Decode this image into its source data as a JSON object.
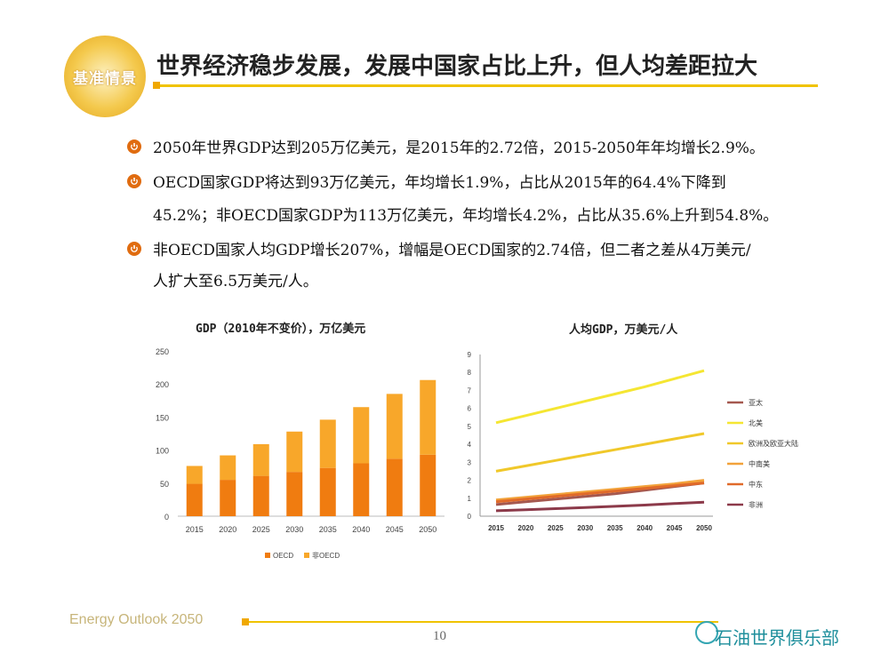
{
  "header": {
    "logo_text": "基准情景",
    "title": "世界经济稳步发展，发展中国家占比上升，但人均差距拉大"
  },
  "bullets": [
    {
      "lines": [
        "2050年世界GDP达到205万亿美元，是2015年的2.72倍，2015-2050年年均增长2.9%。"
      ]
    },
    {
      "lines": [
        "OECD国家GDP将达到93万亿美元，年均增长1.9%，占比从2015年的64.4%下降到",
        "45.2%；非OECD国家GDP为113万亿美元，年均增长4.2%，占比从35.6%上升到54.8%。"
      ]
    },
    {
      "lines": [
        "非OECD国家人均GDP增长207%，增幅是OECD国家的2.74倍，但二者之差从4万美元/",
        "人扩大至6.5万美元/人。"
      ]
    }
  ],
  "chart_data": [
    {
      "type": "bar",
      "stacked": true,
      "title": "GDP（2010年不变价），万亿美元",
      "categories": [
        "2015",
        "2020",
        "2025",
        "2030",
        "2035",
        "2040",
        "2045",
        "2050"
      ],
      "series": [
        {
          "name": "OECD",
          "color": "#f07c10",
          "values": [
            49,
            55,
            61,
            67,
            73,
            80,
            87,
            93
          ]
        },
        {
          "name": "非OECD",
          "color": "#f8a72a",
          "values": [
            27,
            37,
            48,
            61,
            73,
            85,
            98,
            113
          ]
        }
      ],
      "ylim": [
        0,
        250
      ],
      "yticks": [
        "0",
        "50",
        "100",
        "150",
        "200",
        "250"
      ],
      "grid": false,
      "legend": "bottom"
    },
    {
      "type": "line",
      "title": "人均GDP，万美元/人",
      "categories": [
        "2015",
        "2020",
        "2025",
        "2030",
        "2035",
        "2040",
        "2045",
        "2050"
      ],
      "series": [
        {
          "name": "亚太",
          "color": "#a5584f",
          "values": [
            0.65,
            0.8,
            0.95,
            1.1,
            1.25,
            1.45,
            1.65,
            1.85
          ]
        },
        {
          "name": "北美",
          "color": "#f5e632",
          "values": [
            5.2,
            5.6,
            6.0,
            6.4,
            6.8,
            7.2,
            7.65,
            8.1
          ]
        },
        {
          "name": "欧洲及欧亚大陆",
          "color": "#f0c82a",
          "values": [
            2.5,
            2.8,
            3.1,
            3.4,
            3.7,
            4.0,
            4.3,
            4.6
          ]
        },
        {
          "name": "中南美",
          "color": "#f2a23a",
          "values": [
            0.9,
            1.05,
            1.2,
            1.35,
            1.5,
            1.65,
            1.8,
            2.0
          ]
        },
        {
          "name": "中东",
          "color": "#e06a2a",
          "values": [
            0.8,
            0.95,
            1.1,
            1.25,
            1.4,
            1.55,
            1.7,
            1.85
          ]
        },
        {
          "name": "非洲",
          "color": "#8c3a4a",
          "values": [
            0.3,
            0.36,
            0.42,
            0.48,
            0.55,
            0.62,
            0.7,
            0.78
          ]
        }
      ],
      "ylim": [
        0,
        9
      ],
      "yticks": [
        "0",
        "1",
        "2",
        "3",
        "4",
        "5",
        "6",
        "7",
        "8",
        "9"
      ],
      "grid": false,
      "legend": "right"
    }
  ],
  "footer": {
    "brand": "Energy Outlook 2050",
    "page": "10",
    "watermark": "石油世界俱乐部"
  }
}
